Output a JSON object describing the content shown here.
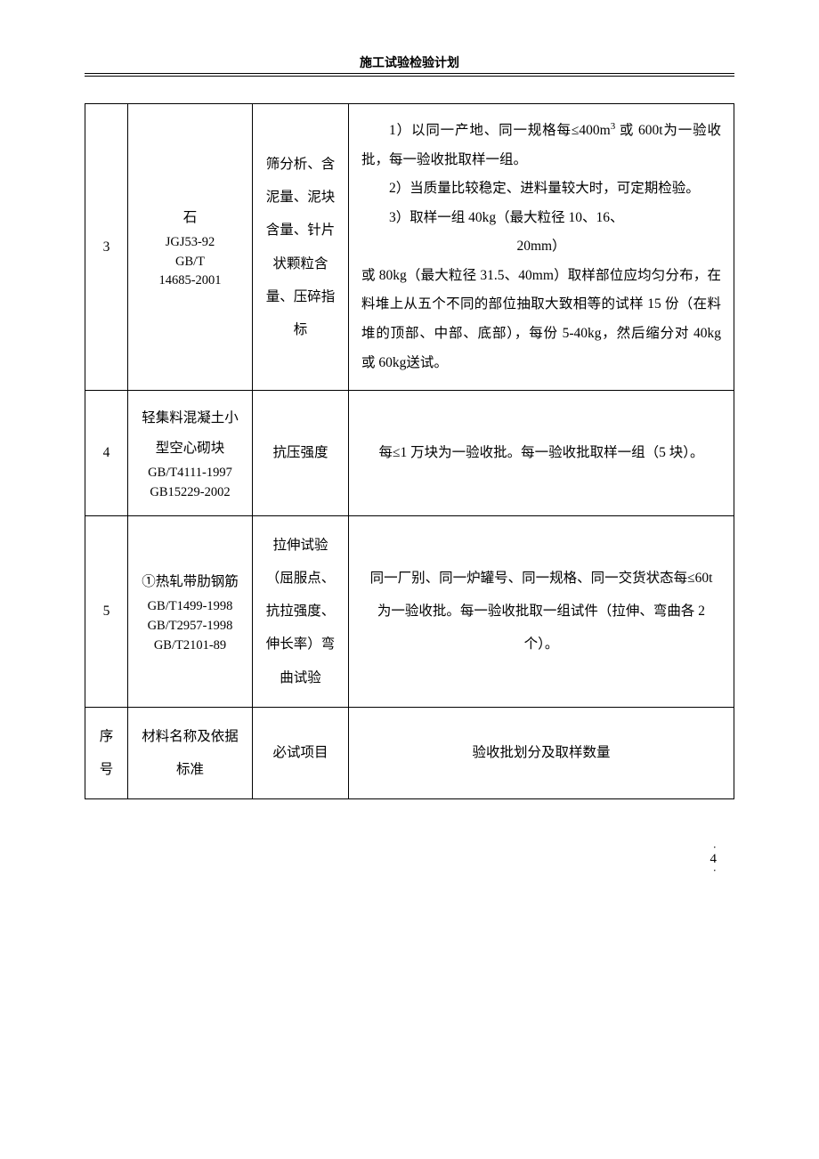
{
  "doc_title": "施工试验检验计划",
  "rows": [
    {
      "num": "3",
      "material": "石",
      "standards": "JGJ53-92\nGB/T\n14685-2001",
      "test_items": "筛分析、含泥量、泥块含量、针片状颗粒含量、压碎指标",
      "criteria_p1": "1）以同一产地、同一规格每≤400m³ 或 600t为一验收批，每一验收批取样一组。",
      "criteria_p2": "2）当质量比较稳定、进料量较大时，可定期检验。",
      "criteria_p3": "3）取样一组 40kg（最大粒径 10、16、",
      "criteria_p3b": "20mm）",
      "criteria_p4": "或 80kg（最大粒径 31.5、40mm）取样部位应均匀分布，在料堆上从五个不同的部位抽取大致相等的试样 15 份（在料堆的顶部、中部、底部），每份 5-40kg，然后缩分对 40kg 或 60kg送试。"
    },
    {
      "num": "4",
      "material": "轻集料混凝土小型空心砌块",
      "standards": "GB/T4111-1997\nGB15229-2002",
      "test_items": "抗压强度",
      "criteria": "每≤1 万块为一验收批。每一验收批取样一组（5 块）。"
    },
    {
      "num": "5",
      "material": "①热轧带肋钢筋",
      "standards": "GB/T1499-1998\nGB/T2957-1998\nGB/T2101-89",
      "test_items": "拉伸试验（屈服点、抗拉强度、伸长率）弯曲试验",
      "criteria": "同一厂别、同一炉罐号、同一规格、同一交货状态每≤60t 为一验收批。每一验收批取一组试件（拉伸、弯曲各 2 个）。"
    }
  ],
  "header_row": {
    "c1a": "序",
    "c1b": "号",
    "c2": "材料名称及依据标准",
    "c3": "必试项目",
    "c4": "验收批划分及取样数量"
  },
  "page_number": "4"
}
